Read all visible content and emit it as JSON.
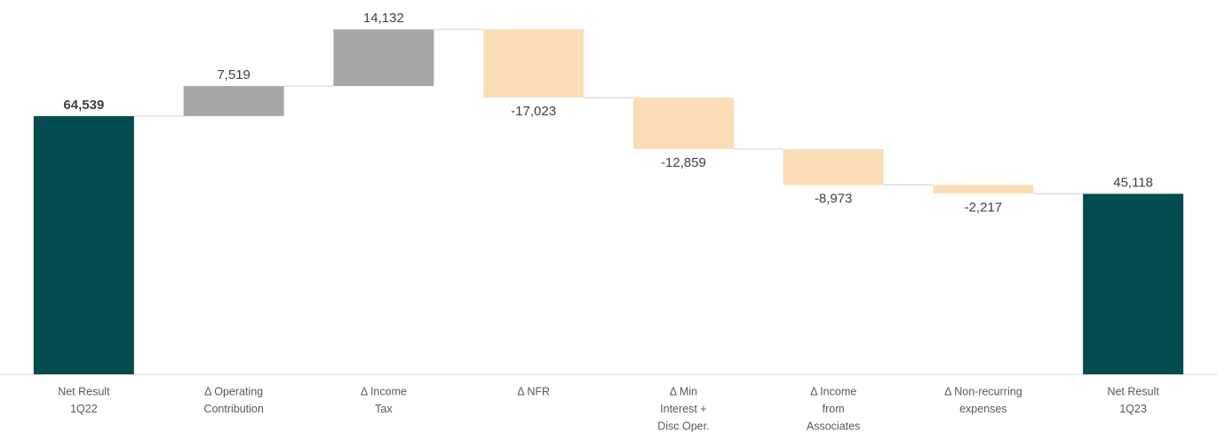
{
  "chart_data": {
    "type": "waterfall",
    "categories": [
      [
        "Net Result",
        "1Q22"
      ],
      [
        "Δ Operating",
        "Contribution"
      ],
      [
        "Δ Income",
        "Tax"
      ],
      [
        "Δ NFR"
      ],
      [
        "Δ Min",
        "Interest +",
        "Disc Oper."
      ],
      [
        "Δ Income",
        "from",
        "Associates"
      ],
      [
        "Δ Non-recurring",
        "expenses"
      ],
      [
        "Net Result",
        "1Q23"
      ]
    ],
    "values": [
      64539,
      7519,
      14132,
      -17023,
      -12859,
      -8973,
      -2217,
      45118
    ],
    "value_labels": [
      "64,539",
      "7,519",
      "14,132",
      "-17,023",
      "-12,859",
      "-8,973",
      "-2,217",
      "45,118"
    ],
    "measure": [
      "total",
      "relative",
      "relative",
      "relative",
      "relative",
      "relative",
      "relative",
      "total"
    ],
    "colors": {
      "total": "#024b4e",
      "increase": "#a6a6a6",
      "decrease": "#fcdcb6"
    },
    "ylim": [
      0,
      90000
    ]
  }
}
